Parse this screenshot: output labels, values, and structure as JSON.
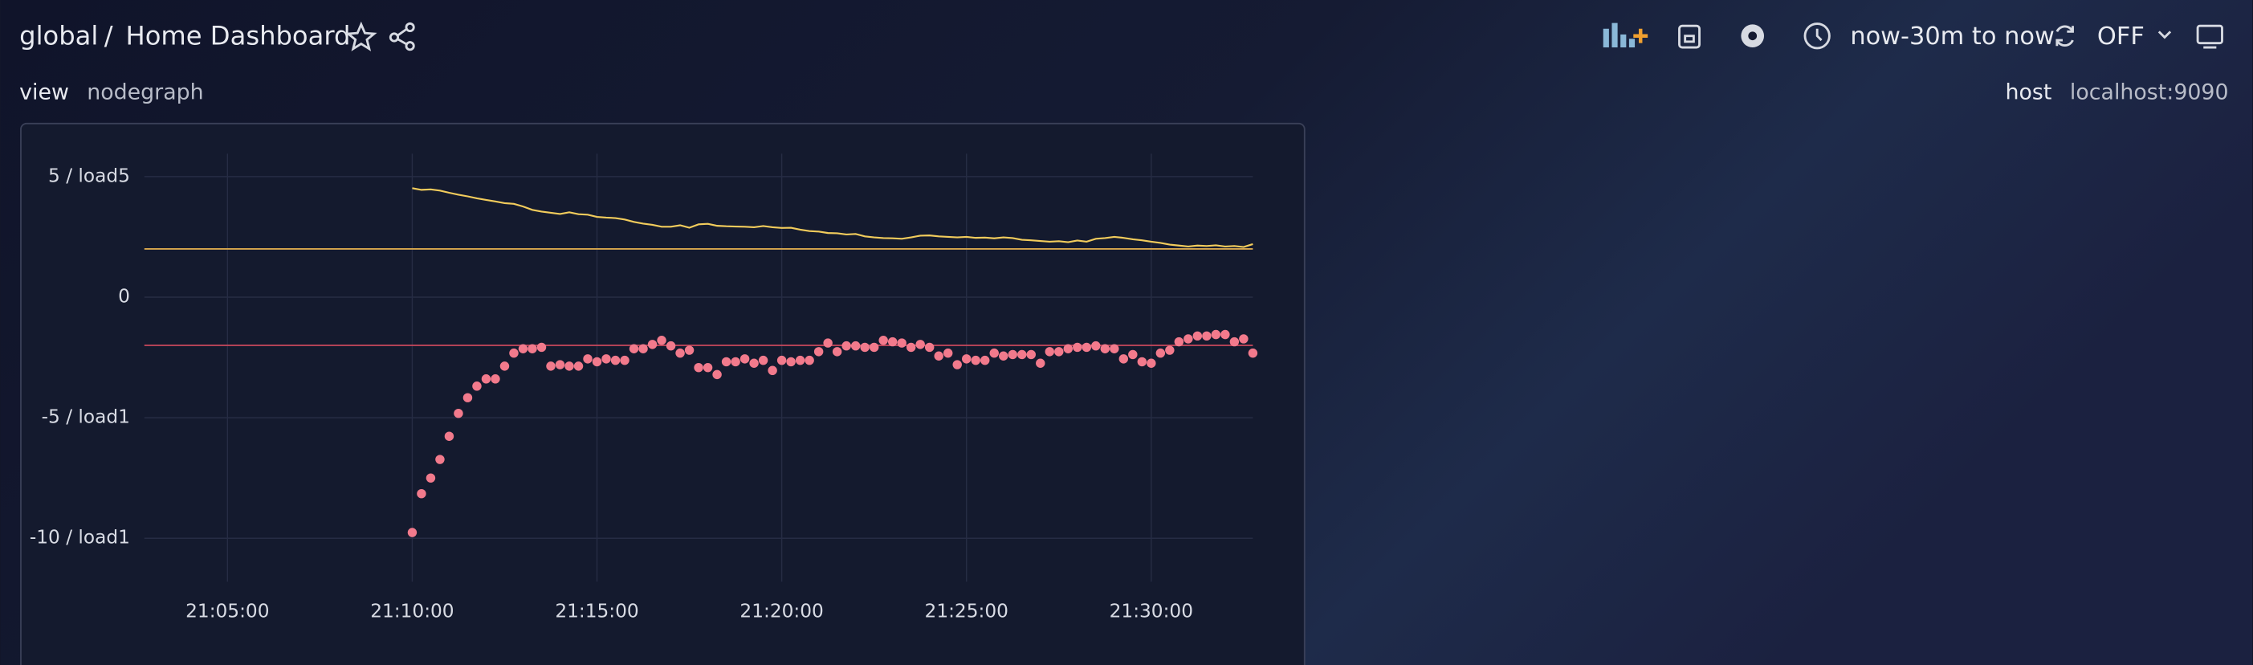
{
  "header": {
    "breadcrumb": [
      "global",
      "/",
      "Home Dashboard"
    ],
    "time_range": "now-30m to now",
    "refresh": "OFF"
  },
  "variables": [
    {
      "label": "view",
      "value": "nodegraph"
    },
    {
      "label": "host",
      "value": "localhost:9090"
    }
  ],
  "chart_data": {
    "type": "line",
    "grid": true,
    "x": [
      "21:10:00",
      "21:10:15",
      "21:10:30",
      "21:10:45",
      "21:11:00",
      "21:11:15",
      "21:11:30",
      "21:11:45",
      "21:12:00",
      "21:12:15",
      "21:12:30",
      "21:12:45",
      "21:13:00",
      "21:13:15",
      "21:13:30",
      "21:13:45",
      "21:14:00",
      "21:14:15",
      "21:14:30",
      "21:14:45",
      "21:15:00",
      "21:15:15",
      "21:15:30",
      "21:15:45",
      "21:16:00",
      "21:16:15",
      "21:16:30",
      "21:16:45",
      "21:17:00",
      "21:17:15",
      "21:17:30",
      "21:17:45",
      "21:18:00",
      "21:18:15",
      "21:18:30",
      "21:18:45",
      "21:19:00",
      "21:19:15",
      "21:19:30",
      "21:19:45",
      "21:20:00",
      "21:20:15",
      "21:20:30",
      "21:20:45",
      "21:21:00",
      "21:21:15",
      "21:21:30",
      "21:21:45",
      "21:22:00",
      "21:22:15",
      "21:22:30",
      "21:22:45",
      "21:23:00",
      "21:23:15",
      "21:23:30",
      "21:23:45",
      "21:24:00",
      "21:24:15",
      "21:24:30",
      "21:24:45",
      "21:25:00",
      "21:25:15",
      "21:25:30",
      "21:25:45",
      "21:26:00",
      "21:26:15",
      "21:26:30",
      "21:26:45",
      "21:27:00",
      "21:27:15",
      "21:27:30",
      "21:27:45",
      "21:28:00",
      "21:28:15",
      "21:28:30",
      "21:28:45",
      "21:29:00",
      "21:29:15",
      "21:29:30",
      "21:29:45",
      "21:30:00",
      "21:30:15",
      "21:30:30",
      "21:30:45",
      "21:31:00",
      "21:31:15",
      "21:31:30",
      "21:31:45",
      "21:32:00",
      "21:32:15",
      "21:32:30",
      "21:32:45"
    ],
    "series": [
      {
        "type": "line",
        "color": "#f2cc5c",
        "values": [
          4.52,
          4.45,
          4.47,
          4.42,
          4.33,
          4.25,
          4.18,
          4.1,
          4.03,
          3.97,
          3.9,
          3.87,
          3.76,
          3.62,
          3.55,
          3.5,
          3.45,
          3.52,
          3.44,
          3.42,
          3.33,
          3.3,
          3.28,
          3.22,
          3.12,
          3.05,
          3.0,
          2.92,
          2.92,
          2.98,
          2.88,
          3.02,
          3.04,
          2.96,
          2.94,
          2.93,
          2.92,
          2.9,
          2.95,
          2.9,
          2.87,
          2.88,
          2.8,
          2.74,
          2.72,
          2.66,
          2.65,
          2.6,
          2.62,
          2.52,
          2.48,
          2.45,
          2.44,
          2.42,
          2.48,
          2.55,
          2.56,
          2.52,
          2.5,
          2.48,
          2.5,
          2.46,
          2.47,
          2.44,
          2.48,
          2.45,
          2.38,
          2.36,
          2.33,
          2.3,
          2.32,
          2.28,
          2.35,
          2.3,
          2.42,
          2.45,
          2.5,
          2.46,
          2.4,
          2.36,
          2.3,
          2.25,
          2.18,
          2.14,
          2.1,
          2.14,
          2.12,
          2.15,
          2.1,
          2.12,
          2.08,
          2.2
        ]
      },
      {
        "type": "scatter",
        "color": "#f27a8c",
        "values": [
          -9.76,
          -8.15,
          -7.5,
          -6.73,
          -5.77,
          -4.82,
          -4.17,
          -3.69,
          -3.39,
          -3.39,
          -2.86,
          -2.32,
          -2.14,
          -2.14,
          -2.08,
          -2.86,
          -2.8,
          -2.86,
          -2.86,
          -2.56,
          -2.68,
          -2.56,
          -2.62,
          -2.62,
          -2.14,
          -2.14,
          -1.96,
          -1.79,
          -2.02,
          -2.32,
          -2.2,
          -2.92,
          -2.92,
          -3.21,
          -2.68,
          -2.68,
          -2.56,
          -2.74,
          -2.62,
          -3.04,
          -2.62,
          -2.68,
          -2.62,
          -2.62,
          -2.26,
          -1.9,
          -2.26,
          -2.02,
          -2.02,
          -2.08,
          -2.08,
          -1.79,
          -1.85,
          -1.9,
          -2.08,
          -1.96,
          -2.08,
          -2.44,
          -2.32,
          -2.8,
          -2.56,
          -2.62,
          -2.62,
          -2.32,
          -2.44,
          -2.38,
          -2.38,
          -2.38,
          -2.74,
          -2.26,
          -2.26,
          -2.14,
          -2.08,
          -2.08,
          -2.02,
          -2.14,
          -2.14,
          -2.56,
          -2.38,
          -2.68,
          -2.74,
          -2.32,
          -2.2,
          -1.85,
          -1.73,
          -1.61,
          -1.61,
          -1.55,
          -1.55,
          -1.85,
          -1.73,
          -2.32
        ]
      }
    ],
    "thresholds": [
      {
        "value": 2,
        "color": "#d9a84e"
      },
      {
        "value": -2,
        "color": "#c9485c"
      }
    ],
    "xlim": [
      "21:02:45",
      "21:32:45"
    ],
    "xticks": [
      "21:05:00",
      "21:10:00",
      "21:15:00",
      "21:20:00",
      "21:25:00",
      "21:30:00"
    ],
    "ylim": [
      -11.8,
      5.95
    ],
    "yticks": [
      {
        "value": 5,
        "label": "5 / load5"
      },
      0,
      {
        "value": -5,
        "label": "-5 / load1"
      },
      {
        "value": -10,
        "label": "-10 / load1"
      }
    ]
  }
}
